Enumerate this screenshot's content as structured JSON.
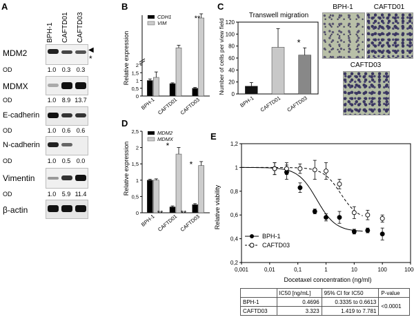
{
  "panels": {
    "A": "A",
    "B": "B",
    "C": "C",
    "D": "D",
    "E": "E"
  },
  "panelA": {
    "lanes": [
      "BPH-1",
      "CAFTD01",
      "CAFTD03"
    ],
    "blots": [
      {
        "name": "MDM2",
        "od": [
          "1.0",
          "0.3",
          "0.3"
        ]
      },
      {
        "name": "MDMX",
        "od": [
          "1.0",
          "8.9",
          "13.7"
        ]
      },
      {
        "name": "E-cadherin",
        "od": [
          "1.0",
          "0.6",
          "0.6"
        ]
      },
      {
        "name": "N-cadherin",
        "od": [
          "1.0",
          "0.5",
          "0.0"
        ]
      },
      {
        "name": "Vimentin",
        "od": [
          "1.0",
          "5.9",
          "11.4"
        ]
      },
      {
        "name": "β-actin",
        "od": null
      }
    ],
    "od_label": "OD",
    "arrow": "◀",
    "asterisk": "*"
  },
  "chart_data": [
    {
      "id": "B",
      "type": "bar",
      "categories": [
        "BPH-1",
        "CAFTD01",
        "CAFTD03"
      ],
      "series": [
        {
          "name": "CDH1",
          "values": [
            1.0,
            0.8,
            0.5
          ],
          "errors": [
            0.1,
            0.05,
            0.05
          ],
          "color": "#000000"
        },
        {
          "name": "VIM",
          "values": [
            1.2,
            5.2,
            16.0
          ],
          "errors": [
            0.35,
            0.9,
            1.5
          ],
          "color": "#cccccc"
        }
      ],
      "ylabel": "Relative expression",
      "yticks_lower": [
        "0",
        "0,5",
        "1",
        "1,5",
        "2"
      ],
      "axis_break": true,
      "annotations": [
        "**"
      ]
    },
    {
      "id": "C",
      "type": "bar",
      "title": "Transwell migration",
      "categories": [
        "BPH-1",
        "CAFTD01",
        "CAFTD03"
      ],
      "values": [
        13,
        78,
        65
      ],
      "errors": [
        6,
        31,
        12
      ],
      "colors": [
        "#111111",
        "#c8c8c8",
        "#888888"
      ],
      "ylabel": "Number of cells per view field",
      "ylim": [
        0,
        120
      ],
      "yticks": [
        "0",
        "20",
        "40",
        "60",
        "80",
        "100",
        "120"
      ],
      "annotations": [
        "*"
      ]
    },
    {
      "id": "D",
      "type": "bar",
      "categories": [
        "BPH-1",
        "CAFTD01",
        "CAFTD03"
      ],
      "series": [
        {
          "name": "MDM2",
          "values": [
            1.0,
            0.18,
            0.25
          ],
          "errors": [
            0.03,
            0.03,
            0.03
          ],
          "color": "#000000"
        },
        {
          "name": "MDMX",
          "values": [
            1.0,
            1.8,
            1.45
          ],
          "errors": [
            0.04,
            0.2,
            0.12
          ],
          "color": "#cccccc"
        }
      ],
      "ylabel": "Relative expression",
      "ylim": [
        0,
        2.5
      ],
      "yticks": [
        "0",
        "0,5",
        "1",
        "1,5",
        "2",
        "2,5"
      ],
      "annotations": [
        "*",
        "*",
        "**",
        "**"
      ]
    },
    {
      "id": "E",
      "type": "line",
      "xlabel": "Docetaxel concentration (ng/ml)",
      "ylabel": "Relative viability",
      "xscale": "log",
      "xticks": [
        "0,001",
        "0,01",
        "0,1",
        "1",
        "10",
        "100",
        "1000"
      ],
      "yticks": [
        "0,2",
        "0,4",
        "0,6",
        "0,8",
        "1",
        "1,2"
      ],
      "ylim": [
        0.2,
        1.2
      ],
      "series": [
        {
          "name": "BPH-1",
          "marker": "filled",
          "x": [
            0.015,
            0.04,
            0.12,
            0.4,
            1,
            3,
            10,
            30,
            100
          ],
          "y": [
            0.99,
            0.96,
            0.83,
            0.63,
            0.58,
            0.58,
            0.46,
            0.47,
            0.44
          ],
          "err": [
            0.05,
            0.06,
            0.04,
            0.02,
            0.03,
            0.05,
            0.02,
            0.02,
            0.05
          ]
        },
        {
          "name": "CAFTD03",
          "marker": "open",
          "x": [
            0.015,
            0.04,
            0.12,
            0.4,
            1,
            3,
            10,
            30,
            100
          ],
          "y": [
            0.99,
            0.99,
            0.99,
            0.98,
            0.97,
            0.86,
            0.62,
            0.6,
            0.57
          ],
          "err": [
            0.05,
            0.05,
            0.04,
            0.08,
            0.07,
            0.04,
            0.05,
            0.04,
            0.03
          ]
        }
      ]
    }
  ],
  "panelC_images": {
    "bph": "BPH-1",
    "caftd01": "CAFTD01",
    "caftd03": "CAFTD03"
  },
  "ic50_table": {
    "headers": [
      "",
      "IC50 [ng/mL]",
      "95% CI for IC50",
      "P-value"
    ],
    "rows": [
      [
        "BPH-1",
        "0.4696",
        "0.3335 to 0.6613"
      ],
      [
        "CAFTD03",
        "3.323",
        "1.419 to 7.781"
      ]
    ],
    "pvalue": "<0.0001"
  }
}
